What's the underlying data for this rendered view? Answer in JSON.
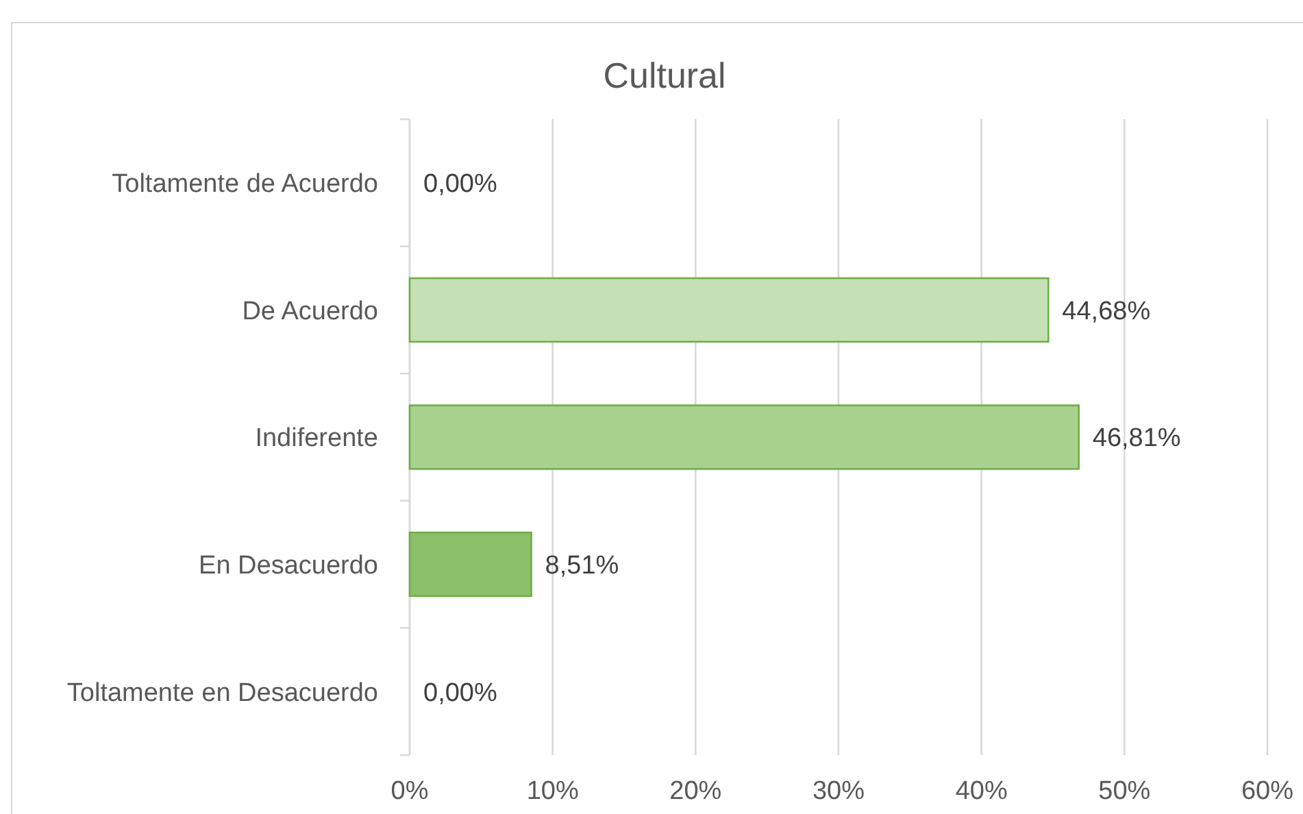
{
  "chart_data": {
    "type": "bar",
    "orientation": "horizontal",
    "title": "Cultural",
    "categories": [
      "Toltamente de Acuerdo",
      "De Acuerdo",
      "Indiferente",
      "En Desacuerdo",
      "Toltamente en Desacuerdo"
    ],
    "values": [
      0,
      44.68,
      46.81,
      8.51,
      0
    ],
    "value_labels": [
      "0,00%",
      "44,68%",
      "46,81%",
      "8,51%",
      "0,00%"
    ],
    "colors": [
      "#e2efda",
      "#c5e0b4",
      "#a9d18e",
      "#8cc068",
      "#70ad47"
    ],
    "xlim": [
      0,
      60
    ],
    "xticks": [
      {
        "value": 0,
        "label": "0%"
      },
      {
        "value": 10,
        "label": "10%"
      },
      {
        "value": 20,
        "label": "20%"
      },
      {
        "value": 30,
        "label": "30%"
      },
      {
        "value": 40,
        "label": "40%"
      },
      {
        "value": 50,
        "label": "50%"
      },
      {
        "value": 60,
        "label": "60%"
      }
    ],
    "grid": "x"
  }
}
